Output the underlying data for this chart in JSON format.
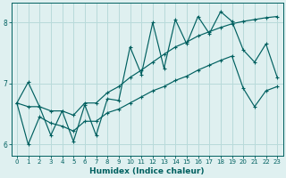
{
  "xlabel": "Humidex (Indice chaleur)",
  "ylabel": "",
  "bg_color": "#dff0f0",
  "line_color": "#006060",
  "grid_color": "#b8dada",
  "xlim": [
    -0.5,
    23.5
  ],
  "ylim": [
    5.82,
    8.32
  ],
  "yticks": [
    6,
    7,
    8
  ],
  "xticks": [
    0,
    1,
    2,
    3,
    4,
    5,
    6,
    7,
    8,
    9,
    10,
    11,
    12,
    13,
    14,
    15,
    16,
    17,
    18,
    19,
    20,
    21,
    22,
    23
  ],
  "x": [
    0,
    1,
    2,
    3,
    4,
    5,
    6,
    7,
    8,
    9,
    10,
    11,
    12,
    13,
    14,
    15,
    16,
    17,
    18,
    19,
    20,
    21,
    22,
    23
  ],
  "y_zigzag": [
    6.68,
    7.02,
    6.62,
    6.15,
    6.55,
    6.05,
    6.65,
    6.15,
    6.75,
    6.72,
    7.6,
    7.15,
    8.0,
    7.25,
    8.05,
    7.65,
    8.1,
    7.82,
    8.18,
    8.02,
    7.55,
    7.35,
    7.65,
    7.1
  ],
  "y_upper": [
    6.68,
    6.62,
    6.62,
    6.55,
    6.55,
    6.48,
    6.68,
    6.68,
    6.85,
    6.95,
    7.1,
    7.22,
    7.35,
    7.48,
    7.6,
    7.68,
    7.78,
    7.85,
    7.92,
    7.98,
    8.02,
    8.05,
    8.08,
    8.1
  ],
  "y_lower": [
    6.68,
    6.0,
    6.45,
    6.35,
    6.3,
    6.22,
    6.38,
    6.38,
    6.52,
    6.58,
    6.68,
    6.78,
    6.88,
    6.95,
    7.05,
    7.12,
    7.22,
    7.3,
    7.38,
    7.45,
    6.92,
    6.62,
    6.88,
    6.95
  ]
}
